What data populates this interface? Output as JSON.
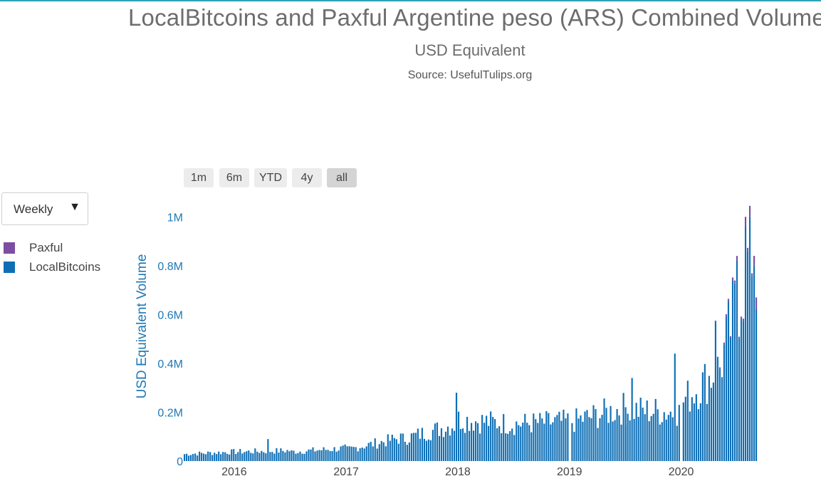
{
  "chart_data": {
    "type": "bar",
    "stacked": true,
    "title": "LocalBitcoins and Paxful Argentine peso (ARS) Combined Volume",
    "subtitle": "USD Equivalent",
    "source": "Source: UsefulTulips.org",
    "ylabel": "USD Equivalent Volume",
    "xlabel": "",
    "ylim": [
      0,
      1100000
    ],
    "y_ticks": [
      0,
      200000,
      400000,
      600000,
      800000,
      1000000
    ],
    "y_tick_labels": [
      "0",
      "0.2M",
      "0.4M",
      "0.6M",
      "0.8M",
      "1M"
    ],
    "x_range": [
      "2015-07-20",
      "2020-08-31"
    ],
    "x_ticks": [
      "2016-01-01",
      "2017-01-01",
      "2018-01-01",
      "2019-01-01",
      "2020-01-01"
    ],
    "x_tick_labels": [
      "2016",
      "2017",
      "2018",
      "2019",
      "2020"
    ],
    "legend_position": "left",
    "grid": false,
    "colors": {
      "Paxful": "#7b4ea3",
      "LocalBitcoins": "#0f6fb5"
    },
    "segments": [
      {
        "start": "2015-07-20",
        "weeks": 24,
        "from": 30000,
        "to": 40000
      },
      {
        "start": "2016-01-04",
        "weeks": 26,
        "from": 40000,
        "to": 45000
      },
      {
        "start": "2016-07-04",
        "weeks": 26,
        "from": 40000,
        "to": 55000
      },
      {
        "start": "2017-01-02",
        "weeks": 26,
        "from": 50000,
        "to": 100000
      },
      {
        "start": "2017-07-03",
        "weeks": 26,
        "from": 95000,
        "to": 160000
      },
      {
        "start": "2018-01-01",
        "weeks": 26,
        "from": 180000,
        "to": 160000
      },
      {
        "start": "2018-07-02",
        "weeks": 26,
        "from": 160000,
        "to": 170000
      },
      {
        "start": "2019-01-07",
        "weeks": 26,
        "from": 170000,
        "to": 230000
      },
      {
        "start": "2019-07-01",
        "weeks": 26,
        "from": 220000,
        "to": 210000
      },
      {
        "start": "2020-01-06",
        "weeks": 18,
        "from": 260000,
        "to": 400000
      },
      {
        "start": "2020-05-11",
        "weeks": 17,
        "from": 430000,
        "to": 1000000
      }
    ],
    "peaks": [
      {
        "week_of": "2016-04-18",
        "LocalBitcoins": 90000
      },
      {
        "week_of": "2017-12-25",
        "LocalBitcoins": 280000
      },
      {
        "week_of": "2019-07-22",
        "LocalBitcoins": 340000
      },
      {
        "week_of": "2019-12-09",
        "LocalBitcoins": 440000
      },
      {
        "week_of": "2020-04-20",
        "LocalBitcoins": 570000,
        "Paxful": 5000
      },
      {
        "week_of": "2020-06-29",
        "LocalBitcoins": 820000,
        "Paxful": 20000
      },
      {
        "week_of": "2020-07-27",
        "LocalBitcoins": 960000,
        "Paxful": 40000
      },
      {
        "week_of": "2020-08-10",
        "LocalBitcoins": 1000000,
        "Paxful": 45000
      },
      {
        "week_of": "2020-08-24",
        "LocalBitcoins": 800000,
        "Paxful": 40000
      },
      {
        "week_of": "2020-08-31",
        "LocalBitcoins": 620000,
        "Paxful": 50000
      }
    ],
    "series": [
      {
        "name": "Paxful",
        "share_note": "small share, visible only from mid-2020"
      },
      {
        "name": "LocalBitcoins"
      }
    ]
  },
  "controls": {
    "range_buttons": [
      "1m",
      "6m",
      "YTD",
      "4y",
      "all"
    ],
    "active_range": "all",
    "interval_select": "Weekly"
  },
  "legend": [
    {
      "name": "Paxful",
      "color": "#7b4ea3"
    },
    {
      "name": "LocalBitcoins",
      "color": "#0f6fb5"
    }
  ]
}
